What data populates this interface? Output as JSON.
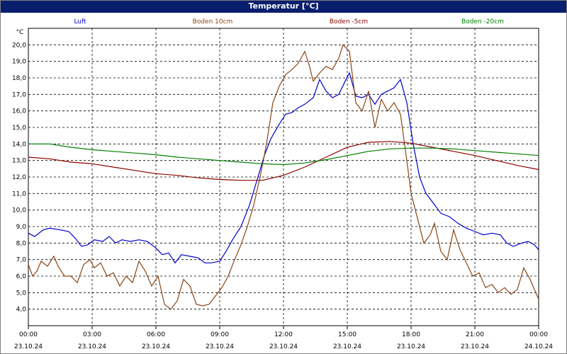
{
  "chart_data": {
    "type": "line",
    "title": "Temperatur [°C]",
    "ylabel": "°C",
    "ylim": [
      3.0,
      21.0
    ],
    "y_ticks": [
      "4,0",
      "5,0",
      "6,0",
      "7,0",
      "8,0",
      "9,0",
      "10,0",
      "11,0",
      "12,0",
      "13,0",
      "14,0",
      "15,0",
      "16,0",
      "17,0",
      "18,0",
      "19,0",
      "20,0"
    ],
    "x_tick_times": [
      "00:00",
      "03:00",
      "06:00",
      "09:00",
      "12:00",
      "15:00",
      "18:00",
      "21:00",
      "00:00"
    ],
    "x_tick_dates": [
      "23.10.24",
      "23.10.24",
      "23.10.24",
      "23.10.24",
      "23.10.24",
      "23.10.24",
      "23.10.24",
      "23.10.24",
      "24.10.24"
    ],
    "x_unit": "hours since 23.10.24 00:00",
    "xlim": [
      0,
      24
    ],
    "grid": true,
    "legend_position": "top",
    "series": [
      {
        "name": "Luft",
        "color": "#0000cc",
        "points": [
          [
            0,
            8.6
          ],
          [
            0.3,
            8.4
          ],
          [
            0.7,
            8.8
          ],
          [
            1.0,
            8.9
          ],
          [
            1.5,
            8.8
          ],
          [
            1.9,
            8.7
          ],
          [
            2.2,
            8.3
          ],
          [
            2.5,
            7.8
          ],
          [
            2.8,
            7.9
          ],
          [
            3.1,
            8.2
          ],
          [
            3.5,
            8.1
          ],
          [
            3.8,
            8.4
          ],
          [
            4.1,
            8.0
          ],
          [
            4.4,
            8.2
          ],
          [
            4.8,
            8.1
          ],
          [
            5.2,
            8.2
          ],
          [
            5.6,
            8.1
          ],
          [
            6.0,
            7.7
          ],
          [
            6.3,
            7.3
          ],
          [
            6.6,
            7.4
          ],
          [
            6.9,
            6.8
          ],
          [
            7.2,
            7.3
          ],
          [
            7.6,
            7.2
          ],
          [
            8.0,
            7.1
          ],
          [
            8.3,
            6.8
          ],
          [
            8.6,
            6.8
          ],
          [
            9.0,
            6.9
          ],
          [
            9.3,
            7.5
          ],
          [
            9.6,
            8.2
          ],
          [
            10.0,
            9.0
          ],
          [
            10.4,
            10.3
          ],
          [
            10.8,
            12.0
          ],
          [
            11.1,
            13.3
          ],
          [
            11.4,
            14.3
          ],
          [
            11.8,
            15.2
          ],
          [
            12.1,
            15.8
          ],
          [
            12.4,
            15.9
          ],
          [
            12.7,
            16.2
          ],
          [
            13.0,
            16.4
          ],
          [
            13.4,
            16.8
          ],
          [
            13.7,
            17.9
          ],
          [
            14.0,
            17.2
          ],
          [
            14.3,
            16.8
          ],
          [
            14.6,
            17.0
          ],
          [
            14.9,
            17.8
          ],
          [
            15.1,
            18.3
          ],
          [
            15.4,
            16.9
          ],
          [
            15.7,
            16.8
          ],
          [
            16.0,
            17.0
          ],
          [
            16.3,
            16.4
          ],
          [
            16.6,
            17.0
          ],
          [
            16.9,
            17.2
          ],
          [
            17.2,
            17.4
          ],
          [
            17.5,
            17.9
          ],
          [
            17.8,
            16.5
          ],
          [
            18.1,
            14.0
          ],
          [
            18.4,
            12.0
          ],
          [
            18.7,
            11.0
          ],
          [
            19.0,
            10.5
          ],
          [
            19.4,
            9.8
          ],
          [
            19.8,
            9.6
          ],
          [
            20.2,
            9.2
          ],
          [
            20.6,
            8.9
          ],
          [
            21.0,
            8.7
          ],
          [
            21.4,
            8.5
          ],
          [
            21.8,
            8.6
          ],
          [
            22.2,
            8.5
          ],
          [
            22.5,
            8.0
          ],
          [
            22.8,
            7.8
          ],
          [
            23.2,
            8.0
          ],
          [
            23.5,
            8.1
          ],
          [
            23.8,
            7.9
          ],
          [
            24.0,
            7.6
          ]
        ]
      },
      {
        "name": "Boden 10cm",
        "color": "#8b4513",
        "points": [
          [
            0,
            6.7
          ],
          [
            0.2,
            6.0
          ],
          [
            0.4,
            6.3
          ],
          [
            0.6,
            6.9
          ],
          [
            0.9,
            6.6
          ],
          [
            1.2,
            7.2
          ],
          [
            1.4,
            6.6
          ],
          [
            1.7,
            6.0
          ],
          [
            2.0,
            6.0
          ],
          [
            2.3,
            5.6
          ],
          [
            2.6,
            6.7
          ],
          [
            2.9,
            7.0
          ],
          [
            3.1,
            6.5
          ],
          [
            3.4,
            6.8
          ],
          [
            3.7,
            6.0
          ],
          [
            4.0,
            6.2
          ],
          [
            4.3,
            5.4
          ],
          [
            4.6,
            6.0
          ],
          [
            4.9,
            5.6
          ],
          [
            5.2,
            6.9
          ],
          [
            5.5,
            6.3
          ],
          [
            5.8,
            5.4
          ],
          [
            6.1,
            6.0
          ],
          [
            6.4,
            4.3
          ],
          [
            6.7,
            4.0
          ],
          [
            7.0,
            4.5
          ],
          [
            7.3,
            5.8
          ],
          [
            7.6,
            5.4
          ],
          [
            7.9,
            4.3
          ],
          [
            8.2,
            4.2
          ],
          [
            8.5,
            4.3
          ],
          [
            8.8,
            4.8
          ],
          [
            9.1,
            5.3
          ],
          [
            9.4,
            6.0
          ],
          [
            9.7,
            7.0
          ],
          [
            10.0,
            7.9
          ],
          [
            10.3,
            9.0
          ],
          [
            10.6,
            10.3
          ],
          [
            10.9,
            12.0
          ],
          [
            11.2,
            14.0
          ],
          [
            11.5,
            16.5
          ],
          [
            11.8,
            17.5
          ],
          [
            12.1,
            18.2
          ],
          [
            12.4,
            18.5
          ],
          [
            12.7,
            18.9
          ],
          [
            13.0,
            19.6
          ],
          [
            13.2,
            18.8
          ],
          [
            13.4,
            17.8
          ],
          [
            13.7,
            18.3
          ],
          [
            14.0,
            18.7
          ],
          [
            14.3,
            18.5
          ],
          [
            14.6,
            19.2
          ],
          [
            14.8,
            20.0
          ],
          [
            15.1,
            19.6
          ],
          [
            15.4,
            16.5
          ],
          [
            15.7,
            16.0
          ],
          [
            16.0,
            17.2
          ],
          [
            16.3,
            15.0
          ],
          [
            16.6,
            16.7
          ],
          [
            16.9,
            16.0
          ],
          [
            17.2,
            16.5
          ],
          [
            17.5,
            15.8
          ],
          [
            17.8,
            13.0
          ],
          [
            18.0,
            11.0
          ],
          [
            18.3,
            9.5
          ],
          [
            18.6,
            8.0
          ],
          [
            18.9,
            8.5
          ],
          [
            19.1,
            9.2
          ],
          [
            19.4,
            7.5
          ],
          [
            19.7,
            7.0
          ],
          [
            20.0,
            8.8
          ],
          [
            20.3,
            7.6
          ],
          [
            20.6,
            6.8
          ],
          [
            20.9,
            6.0
          ],
          [
            21.2,
            6.2
          ],
          [
            21.5,
            5.3
          ],
          [
            21.8,
            5.5
          ],
          [
            22.1,
            5.0
          ],
          [
            22.4,
            5.3
          ],
          [
            22.7,
            4.9
          ],
          [
            23.0,
            5.2
          ],
          [
            23.3,
            6.5
          ],
          [
            23.6,
            5.8
          ],
          [
            23.8,
            5.2
          ],
          [
            24.0,
            4.6
          ]
        ]
      },
      {
        "name": "Boden -5cm",
        "color": "#8b0000",
        "points": [
          [
            0,
            13.2
          ],
          [
            1,
            13.1
          ],
          [
            2,
            12.9
          ],
          [
            3,
            12.8
          ],
          [
            4,
            12.6
          ],
          [
            5,
            12.4
          ],
          [
            6,
            12.2
          ],
          [
            7,
            12.1
          ],
          [
            8,
            11.95
          ],
          [
            9,
            11.85
          ],
          [
            10,
            11.8
          ],
          [
            11,
            11.8
          ],
          [
            12,
            12.1
          ],
          [
            13,
            12.6
          ],
          [
            14,
            13.2
          ],
          [
            15,
            13.8
          ],
          [
            16,
            14.1
          ],
          [
            17,
            14.15
          ],
          [
            18,
            14.05
          ],
          [
            19,
            13.8
          ],
          [
            20,
            13.55
          ],
          [
            21,
            13.3
          ],
          [
            22,
            13.0
          ],
          [
            23,
            12.7
          ],
          [
            24,
            12.45
          ]
        ]
      },
      {
        "name": "Boden -20cm",
        "color": "#008000",
        "points": [
          [
            0,
            14.0
          ],
          [
            1,
            14.0
          ],
          [
            2,
            13.8
          ],
          [
            3,
            13.65
          ],
          [
            4,
            13.55
          ],
          [
            5,
            13.45
          ],
          [
            6,
            13.35
          ],
          [
            7,
            13.2
          ],
          [
            8,
            13.1
          ],
          [
            9,
            13.0
          ],
          [
            10,
            12.9
          ],
          [
            11,
            12.8
          ],
          [
            12,
            12.75
          ],
          [
            13,
            12.85
          ],
          [
            14,
            13.05
          ],
          [
            15,
            13.3
          ],
          [
            16,
            13.55
          ],
          [
            17,
            13.7
          ],
          [
            18,
            13.75
          ],
          [
            19,
            13.75
          ],
          [
            20,
            13.7
          ],
          [
            21,
            13.6
          ],
          [
            22,
            13.5
          ],
          [
            23,
            13.4
          ],
          [
            24,
            13.3
          ]
        ]
      }
    ]
  }
}
